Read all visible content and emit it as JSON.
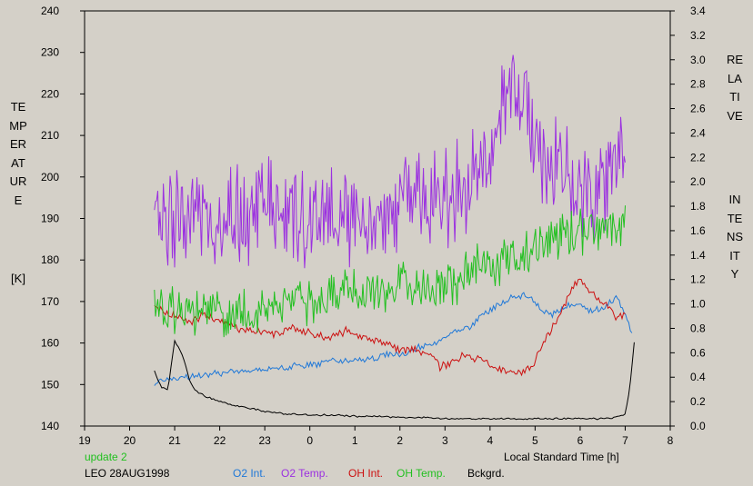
{
  "chart_data": {
    "type": "line",
    "xlabel": "Local Standard Time [h]",
    "ylabel_left": "TEMPERATURE",
    "ylabel_left_unit": "[K]",
    "ylabel_right": "RELATIVE INTENSITY",
    "x_ticks": [
      "19",
      "20",
      "21",
      "22",
      "23",
      "0",
      "1",
      "2",
      "3",
      "4",
      "5",
      "6",
      "7",
      "8"
    ],
    "x_range": [
      19,
      32
    ],
    "ylim_left": [
      140,
      240
    ],
    "ylim_right": [
      0.0,
      3.4
    ],
    "left_ticks": [
      140,
      150,
      160,
      170,
      180,
      190,
      200,
      210,
      220,
      230,
      240
    ],
    "right_ticks": [
      "0.0",
      "0.2",
      "0.4",
      "0.6",
      "0.8",
      "1.0",
      "1.2",
      "1.4",
      "1.6",
      "1.8",
      "2.0",
      "2.2",
      "2.4",
      "2.6",
      "2.8",
      "3.0",
      "3.2",
      "3.4"
    ],
    "grid": false,
    "legend_position": "bottom",
    "series": [
      {
        "name": "O2 Int.",
        "axis": "right",
        "color": "#1f78d8",
        "x": [
          20.55,
          20.8,
          21.0,
          21.3,
          21.6,
          21.9,
          22.2,
          22.5,
          22.8,
          23.1,
          23.4,
          23.7,
          24.0,
          24.3,
          24.6,
          24.9,
          25.2,
          25.5,
          25.8,
          26.1,
          26.4,
          26.7,
          27.0,
          27.3,
          27.6,
          27.9,
          28.2,
          28.5,
          28.8,
          29.0,
          29.2,
          29.4,
          29.7,
          30.0,
          30.2,
          30.5,
          30.8,
          31.0,
          31.15
        ],
        "values": [
          0.36,
          0.38,
          0.38,
          0.4,
          0.41,
          0.43,
          0.44,
          0.45,
          0.45,
          0.46,
          0.48,
          0.49,
          0.5,
          0.52,
          0.54,
          0.55,
          0.55,
          0.56,
          0.59,
          0.58,
          0.64,
          0.66,
          0.72,
          0.79,
          0.82,
          0.93,
          1.0,
          1.05,
          1.08,
          1.02,
          0.92,
          0.92,
          0.98,
          1.0,
          0.94,
          0.96,
          1.05,
          0.92,
          0.74
        ]
      },
      {
        "name": "O2 Temp.",
        "axis": "left",
        "color": "#9b30e0",
        "x": [
          20.55,
          20.8,
          21.1,
          21.4,
          21.7,
          22.0,
          22.3,
          22.6,
          22.9,
          23.2,
          23.5,
          23.8,
          24.1,
          24.4,
          24.7,
          25.0,
          25.3,
          25.6,
          25.9,
          26.2,
          26.5,
          26.8,
          27.1,
          27.4,
          27.7,
          28.0,
          28.3,
          28.6,
          28.9,
          29.2,
          29.5,
          29.8,
          30.1,
          30.4,
          30.7,
          31.0
        ],
        "values": [
          198,
          188,
          192,
          194,
          190,
          191,
          192,
          190,
          196,
          191,
          193,
          191,
          190,
          189,
          193,
          189,
          188,
          191,
          193,
          197,
          196,
          196,
          195,
          198,
          201,
          203,
          217,
          222,
          215,
          205,
          201,
          199,
          198,
          197,
          203,
          206
        ]
      },
      {
        "name": "OH Int.",
        "axis": "right",
        "color": "#cc1010",
        "x": [
          20.55,
          20.8,
          21.0,
          21.3,
          21.6,
          22.0,
          22.4,
          22.8,
          23.2,
          23.6,
          24.0,
          24.4,
          24.8,
          25.2,
          25.6,
          26.0,
          26.4,
          26.7,
          26.9,
          27.1,
          27.4,
          27.7,
          28.0,
          28.3,
          28.6,
          28.9,
          29.2,
          29.4,
          29.6,
          29.8,
          30.0,
          30.2,
          30.5,
          30.8,
          31.0
        ],
        "values": [
          0.98,
          0.93,
          0.9,
          0.85,
          0.9,
          0.88,
          0.8,
          0.78,
          0.76,
          0.8,
          0.76,
          0.72,
          0.78,
          0.74,
          0.68,
          0.63,
          0.62,
          0.58,
          0.48,
          0.52,
          0.58,
          0.55,
          0.5,
          0.45,
          0.43,
          0.47,
          0.68,
          0.82,
          0.95,
          1.12,
          1.2,
          1.1,
          1.02,
          0.9,
          0.92
        ]
      },
      {
        "name": "OH Temp.",
        "axis": "left",
        "color": "#22c020",
        "x": [
          20.55,
          20.9,
          21.2,
          21.6,
          22.0,
          22.4,
          22.8,
          23.2,
          23.6,
          24.0,
          24.4,
          24.8,
          25.2,
          25.6,
          26.0,
          26.4,
          26.8,
          27.1,
          27.4,
          27.7,
          28.0,
          28.3,
          28.6,
          28.9,
          29.2,
          29.5,
          29.8,
          30.1,
          30.4,
          30.7,
          31.0
        ],
        "values": [
          167,
          168,
          167,
          168,
          167,
          167,
          168,
          169,
          170,
          170,
          171,
          172,
          172,
          173,
          174,
          174,
          172,
          174,
          176,
          178,
          179,
          180,
          180,
          182,
          183,
          186,
          186,
          187,
          188,
          188,
          188
        ]
      },
      {
        "name": "Bckgrd.",
        "axis": "right",
        "color": "#000000",
        "x": [
          20.55,
          20.7,
          20.85,
          21.0,
          21.1,
          21.2,
          21.35,
          21.5,
          21.7,
          22.0,
          22.3,
          22.6,
          23.0,
          23.5,
          24.0,
          24.5,
          25.0,
          25.5,
          26.0,
          26.5,
          27.0,
          27.5,
          28.0,
          28.5,
          29.0,
          29.5,
          30.0,
          30.5,
          30.8,
          31.0,
          31.1,
          31.2
        ],
        "values": [
          0.45,
          0.32,
          0.3,
          0.7,
          0.64,
          0.55,
          0.35,
          0.28,
          0.24,
          0.2,
          0.17,
          0.15,
          0.12,
          0.1,
          0.09,
          0.09,
          0.08,
          0.08,
          0.07,
          0.07,
          0.06,
          0.06,
          0.06,
          0.06,
          0.06,
          0.06,
          0.06,
          0.06,
          0.07,
          0.1,
          0.3,
          0.68
        ]
      }
    ]
  },
  "footer": {
    "update": "update 2",
    "station_date": "LEO 28AUG1998",
    "legend": [
      "O2 Int.",
      "O2 Temp.",
      "OH Int.",
      "OH Temp.",
      "Bckgrd."
    ]
  },
  "colors": {
    "background": "#d4d0c8",
    "update_text": "#22c020",
    "o2_int": "#1f78d8",
    "o2_temp": "#9b30e0",
    "oh_int": "#cc1010",
    "oh_temp": "#22c020",
    "bckgrd": "#000000"
  }
}
